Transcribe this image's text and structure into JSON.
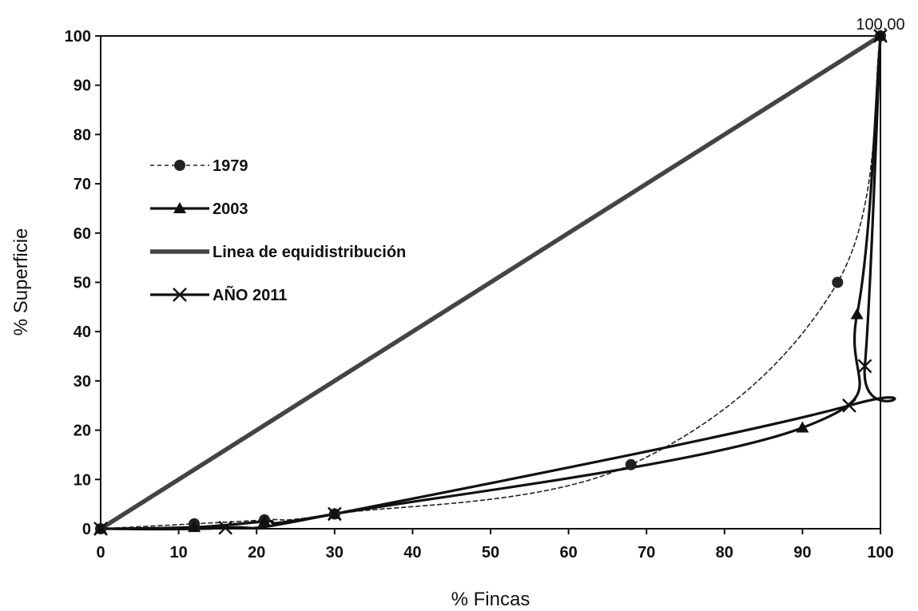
{
  "chart_data": {
    "type": "line",
    "title": "",
    "xlabel": "% Fincas",
    "ylabel": "% Superficie",
    "xlim": [
      0,
      100
    ],
    "ylim": [
      0,
      100
    ],
    "xticks": [
      0,
      10,
      20,
      30,
      40,
      50,
      60,
      70,
      80,
      90,
      100
    ],
    "yticks": [
      0,
      10,
      20,
      30,
      40,
      50,
      60,
      70,
      80,
      90,
      100
    ],
    "grid": false,
    "legend_position": "left",
    "series": [
      {
        "name": "1979",
        "style": "dashed",
        "marker": "circle",
        "color": "#222222",
        "x": [
          0,
          12,
          21,
          30,
          68,
          94.5,
          100
        ],
        "y": [
          0,
          1,
          1.8,
          3,
          13,
          50,
          100
        ]
      },
      {
        "name": "2003",
        "style": "solid",
        "marker": "triangle",
        "color": "#111111",
        "x": [
          0,
          12,
          21,
          30,
          90,
          97,
          100
        ],
        "y": [
          0,
          0.3,
          1.5,
          3,
          20.5,
          43.5,
          100
        ]
      },
      {
        "name": "Linea de equidistribución",
        "style": "solid-thick",
        "marker": "none",
        "color": "#444444",
        "x": [
          0,
          100
        ],
        "y": [
          0,
          100
        ]
      },
      {
        "name": "AÑO 2011",
        "style": "solid",
        "marker": "x",
        "color": "#111111",
        "x": [
          0,
          16,
          30,
          96,
          98,
          100
        ],
        "y": [
          0,
          0.2,
          3,
          25,
          33,
          100
        ]
      }
    ],
    "annotations": [
      {
        "text": "100.00",
        "x": 100,
        "y": 100
      }
    ]
  }
}
